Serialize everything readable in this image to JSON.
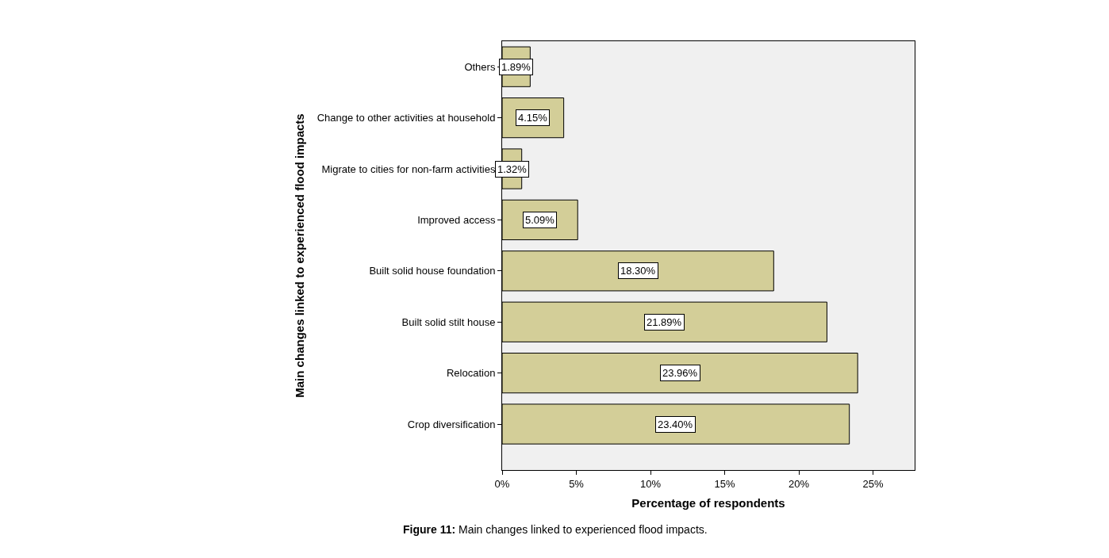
{
  "chart_data": {
    "type": "bar",
    "orientation": "horizontal",
    "xlabel": "Percentage of respondents",
    "ylabel": "Main changes linked to experienced flood impacts",
    "categories": [
      "Others",
      "Change to other activities at household",
      "Migrate to cities for non-farm activities",
      "Improved access",
      "Built solid house foundation",
      "Built solid stilt house",
      "Relocation",
      "Crop diversification"
    ],
    "values": [
      1.89,
      4.15,
      1.32,
      5.09,
      18.3,
      21.89,
      23.96,
      23.4
    ],
    "value_labels": [
      "1.89%",
      "4.15%",
      "1.32%",
      "5.09%",
      "18.30%",
      "21.89%",
      "23.96%",
      "23.40%"
    ],
    "color": "#d3ce98",
    "xlim": [
      0,
      27.8
    ],
    "xticks": [
      {
        "value": 0,
        "label": "0%"
      },
      {
        "value": 5,
        "label": "5%"
      },
      {
        "value": 10,
        "label": "10%"
      },
      {
        "value": 15,
        "label": "15%"
      },
      {
        "value": 20,
        "label": "20%"
      },
      {
        "value": 25,
        "label": "25%"
      }
    ],
    "grid": false,
    "legend": false,
    "annotations": [
      "Figure 11: Main changes linked to experienced flood impacts."
    ]
  }
}
